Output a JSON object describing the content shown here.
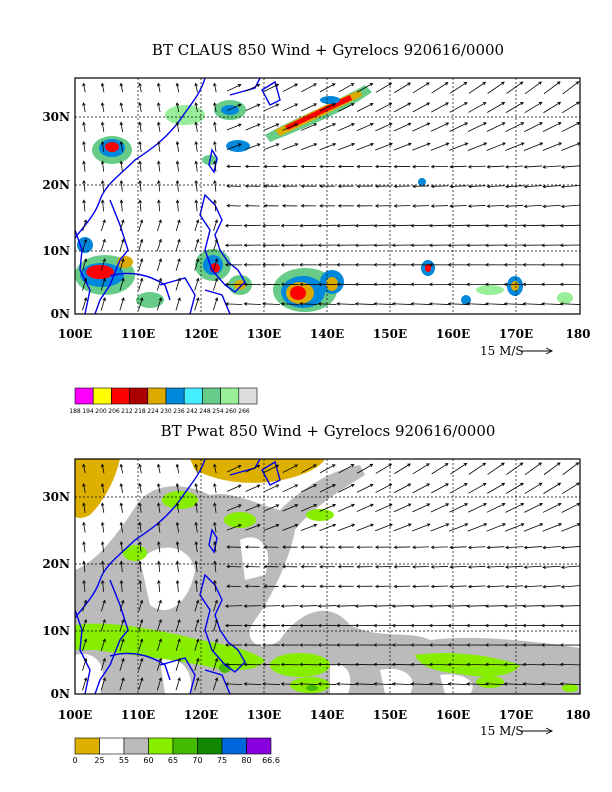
{
  "panels": [
    {
      "title": "BT CLAUS 850 Wind + Gyrelocs 920616/0000",
      "lon_labels": [
        "100E",
        "110E",
        "120E",
        "130E",
        "140E",
        "150E",
        "160E",
        "170E",
        "180"
      ],
      "lat_labels": [
        "0N",
        "10N",
        "20N",
        "30N"
      ],
      "ref_vector": "15 M/S",
      "colorbar_labels": [
        "188",
        "194",
        "200",
        "206",
        "212",
        "218",
        "224",
        "230",
        "236",
        "242",
        "248",
        "254",
        "260",
        "266"
      ],
      "colorbar_colors": [
        "#ff00ff",
        "#ffff00",
        "#ff0000",
        "#aa0000",
        "#ddaa00",
        "#0088dd",
        "#44eeff",
        "#66cc88",
        "#99ee99",
        "#dddddd"
      ]
    },
    {
      "title": "BT Pwat 850 Wind + Gyrelocs 920616/0000",
      "lon_labels": [
        "100E",
        "110E",
        "120E",
        "130E",
        "140E",
        "150E",
        "160E",
        "170E",
        "180"
      ],
      "lat_labels": [
        "0N",
        "10N",
        "20N",
        "30N"
      ],
      "ref_vector": "15 M/S",
      "colorbar_labels": [
        "0",
        "25",
        "55",
        "60",
        "65",
        "70",
        "75",
        "80",
        "66.6"
      ],
      "colorbar_colors": [
        "#ddb000",
        "#ffffff",
        "#bbbbbb",
        "#88ee00",
        "#44bb00",
        "#118800",
        "#0066dd",
        "#8800dd"
      ]
    }
  ],
  "map": {
    "lon_range": [
      100,
      180
    ],
    "lat_range": [
      0,
      36
    ]
  }
}
